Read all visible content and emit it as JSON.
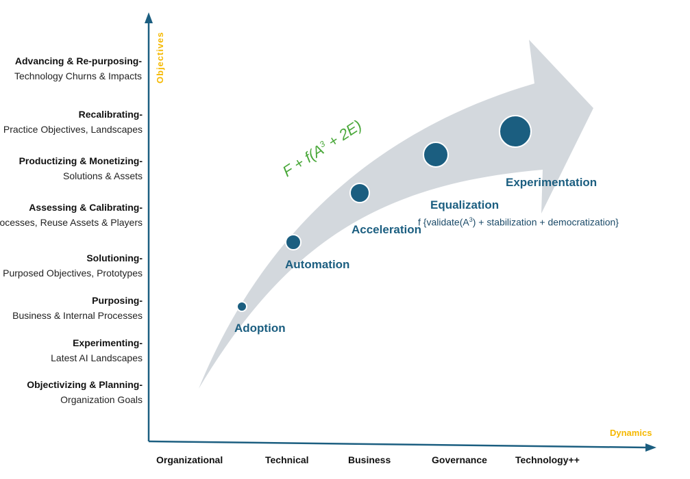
{
  "axes": {
    "y_title": "Objectives",
    "x_title": "Dynamics",
    "color_axis": "#1b5e80",
    "color_title": "#f5b800"
  },
  "y_levels": [
    {
      "title": "Advancing & Re-purposing-",
      "sub": "Technology Churns & Impacts"
    },
    {
      "title": "Recalibrating-",
      "sub": "Practice Objectives, Landscapes"
    },
    {
      "title": "Productizing & Monetizing-",
      "sub": "Solutions & Assets"
    },
    {
      "title": "Assessing  & Calibrating-",
      "sub": "Processes, Reuse Assets & Players"
    },
    {
      "title": "Solutioning-",
      "sub": "Purposed Objectives, Prototypes"
    },
    {
      "title": "Purposing-",
      "sub": "Business & Internal Processes"
    },
    {
      "title": "Experimenting-",
      "sub": "Latest AI Landscapes"
    },
    {
      "title": "Objectivizing & Planning-",
      "sub": "Organization Goals"
    }
  ],
  "x_levels": [
    "Organizational",
    "Technical",
    "Business",
    "Governance",
    "Technology++"
  ],
  "stages": [
    {
      "label": "Adoption"
    },
    {
      "label": "Automation"
    },
    {
      "label": "Acceleration"
    },
    {
      "label": "Equalization"
    },
    {
      "label": "Experimentation"
    }
  ],
  "equalization_formula": {
    "prefix": "f {validate(A",
    "sup": "3",
    "suffix": ") + stabilization + democratization}"
  },
  "arrow_formula": {
    "prefix": "F + f(A",
    "sup": "3",
    "suffix": " + 2E)",
    "color": "#4aa83a"
  },
  "colors": {
    "arrow_fill": "#d3d8dd",
    "dot_fill": "#1b5e80",
    "dot_stroke": "#ffffff"
  }
}
